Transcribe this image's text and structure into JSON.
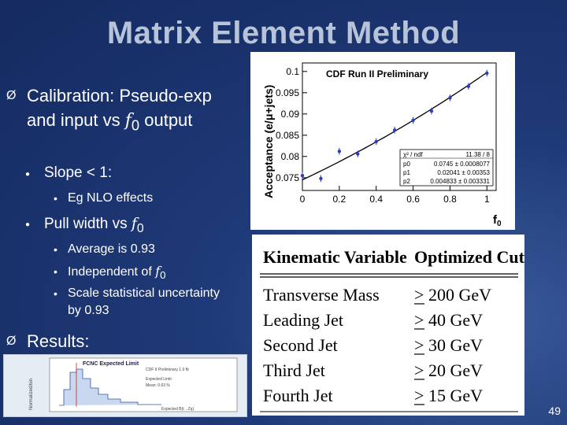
{
  "slide": {
    "title": "Matrix Element Method",
    "page_number": "49",
    "bullets": {
      "calibration": {
        "text_a": "Calibration: Pseudo-exp and input vs ",
        "f": "f",
        "sub": "0",
        "text_b": "output"
      },
      "slope": "Slope < 1:",
      "slope_sub": "Eg NLO effects",
      "pull": {
        "text": "Pull width vs ",
        "f": "f",
        "sub": "0"
      },
      "pull_subs": [
        {
          "text": "Average is 0.93"
        },
        {
          "text": "Independent of ",
          "f": "f",
          "sub": "0"
        },
        {
          "text": "Scale statistical uncertainty by 0.93"
        }
      ],
      "results": "Results:"
    },
    "bullet_marks": {
      "lvl1": "Ø",
      "lvl2": "●",
      "lvl3": "•"
    }
  },
  "plot": {
    "title": "CDF Run II Preliminary",
    "ylabel": "Acceptance (e/μ+jets)",
    "xlabel": "f",
    "xlabel_sub": "0",
    "fit_box": [
      [
        "χ² / ndf",
        "11.38 / 8"
      ],
      [
        "p0",
        "0.0745 ± 0.0008077"
      ],
      [
        "p1",
        "0.02041 ± 0.00353"
      ],
      [
        "p2",
        "0.004833 ± 0.003331"
      ]
    ]
  },
  "chart_data": {
    "type": "scatter",
    "title": "CDF Run II Preliminary",
    "xlabel": "f0",
    "ylabel": "Acceptance (e/μ+jets)",
    "xlim": [
      0,
      1.05
    ],
    "ylim": [
      0.072,
      0.102
    ],
    "x_ticks": [
      "0",
      "0.2",
      "0.4",
      "0.6",
      "0.8",
      "1"
    ],
    "y_ticks": [
      "0.075",
      "0.08",
      "0.085",
      "0.09",
      "0.095",
      "0.1"
    ],
    "x": [
      0.0,
      0.1,
      0.2,
      0.3,
      0.4,
      0.5,
      0.6,
      0.7,
      0.8,
      0.9,
      1.0
    ],
    "y": [
      0.0755,
      0.0748,
      0.0812,
      0.0806,
      0.0835,
      0.0862,
      0.0885,
      0.0907,
      0.0938,
      0.0965,
      0.0996
    ],
    "yerr": [
      0.0008,
      0.0008,
      0.0008,
      0.0008,
      0.0008,
      0.0008,
      0.0008,
      0.0008,
      0.0008,
      0.0008,
      0.0008
    ],
    "fit": {
      "p0": 0.0745,
      "p1": 0.02041,
      "p2": 0.004833
    }
  },
  "table": {
    "headers": [
      "Kinematic Variable",
      "Optimized Cut"
    ],
    "rows": [
      [
        "Transverse Mass",
        "200 GeV"
      ],
      [
        "Leading Jet",
        "40 GeV"
      ],
      [
        "Second Jet",
        "30 GeV"
      ],
      [
        "Third Jet",
        "20 GeV"
      ],
      [
        "Fourth Jet",
        "15 GeV"
      ]
    ]
  },
  "thumbnail": {
    "title": "FCNC Expected Limit",
    "subtitle": "CDF II Preliminary 1.9 fb",
    "legend_a": "Expected Limit",
    "legend_b": "Mean: 0.63 %",
    "ylabel": "Normalized/bin",
    "xlabel": "Expected B(t→Zq)"
  }
}
